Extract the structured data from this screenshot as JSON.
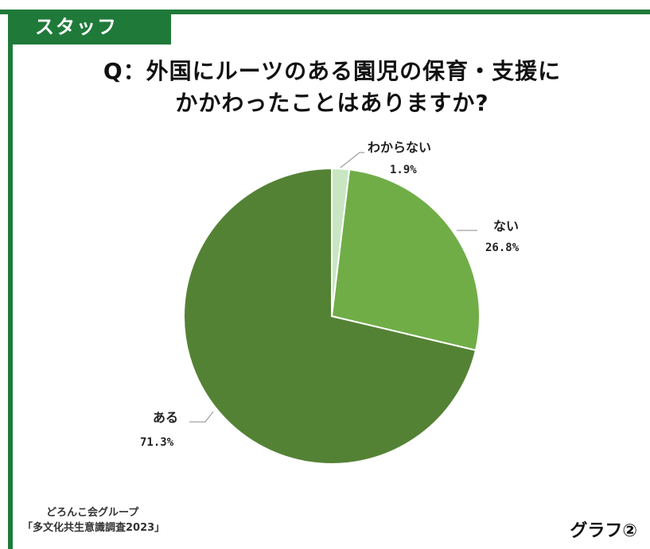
{
  "header": {
    "tab_label": "スタッフ"
  },
  "chart_data": {
    "type": "pie",
    "title": "Q：外国にルーツのある園児の保育・支援に\nかかわったことはありますか?",
    "unit": "%",
    "slices": [
      {
        "label": "わからない",
        "value": 1.9,
        "display": "1.9%",
        "color": "#c9e6c2"
      },
      {
        "label": "ない",
        "value": 26.8,
        "display": "26.8%",
        "color": "#70ad47"
      },
      {
        "label": "ある",
        "value": 71.3,
        "display": "71.3%",
        "color": "#548235"
      }
    ],
    "start_angle_deg": 0,
    "direction": "clockwise"
  },
  "footer": {
    "org": "どろんこ会グループ",
    "survey": "「多文化共生意識調査2023」",
    "graph_label": "グラフ②"
  },
  "colors": {
    "brand_green": "#1f7a3a",
    "slice_border": "#ffffff"
  }
}
